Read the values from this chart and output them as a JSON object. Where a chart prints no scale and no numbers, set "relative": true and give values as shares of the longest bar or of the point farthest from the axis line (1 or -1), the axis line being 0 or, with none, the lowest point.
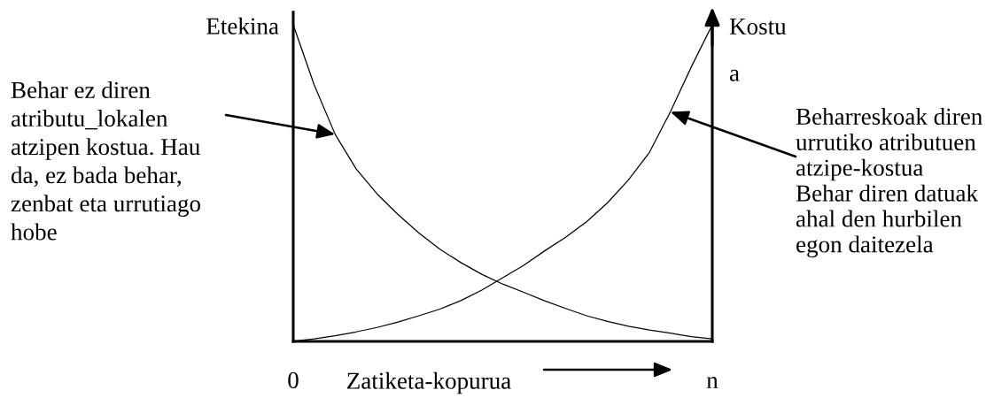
{
  "chart_data": {
    "type": "line",
    "relative": true,
    "xlabel": "Zatiketa-kopurua",
    "ylabel": "Etekina",
    "y2label": "Kostu\na",
    "categories": [
      "0",
      null,
      null,
      null,
      null,
      null,
      null,
      null,
      null,
      null,
      null,
      null,
      null,
      null,
      null,
      null,
      null,
      null,
      null,
      null,
      "n"
    ],
    "series": [
      {
        "color": "#000000",
        "values": [
          1.0,
          0.81,
          0.654,
          0.545,
          0.466,
          0.401,
          0.342,
          0.291,
          0.249,
          0.212,
          0.181,
          0.155,
          0.128,
          0.104,
          0.081,
          0.063,
          0.048,
          0.036,
          0.026,
          0.015,
          0.008
        ]
      },
      {
        "color": "#000000",
        "axis": "y2",
        "values": [
          0.0,
          0.008,
          0.018,
          0.03,
          0.044,
          0.061,
          0.081,
          0.102,
          0.129,
          0.162,
          0.201,
          0.24,
          0.286,
          0.329,
          0.378,
          0.438,
          0.51,
          0.597,
          0.725,
          0.867,
          1.0
        ]
      }
    ],
    "annotations": [
      "Behar ez diren\natributu_lokalen\natzipen kostua. Hau\nda, ez bada behar,\nzenbat eta urrutiago\nhobe",
      "Beharreskoak diren\nurrutiko atributuen\natzipe-kostua\nBehar diren datuak\nahal den hurbilen\negon daitezela"
    ]
  }
}
